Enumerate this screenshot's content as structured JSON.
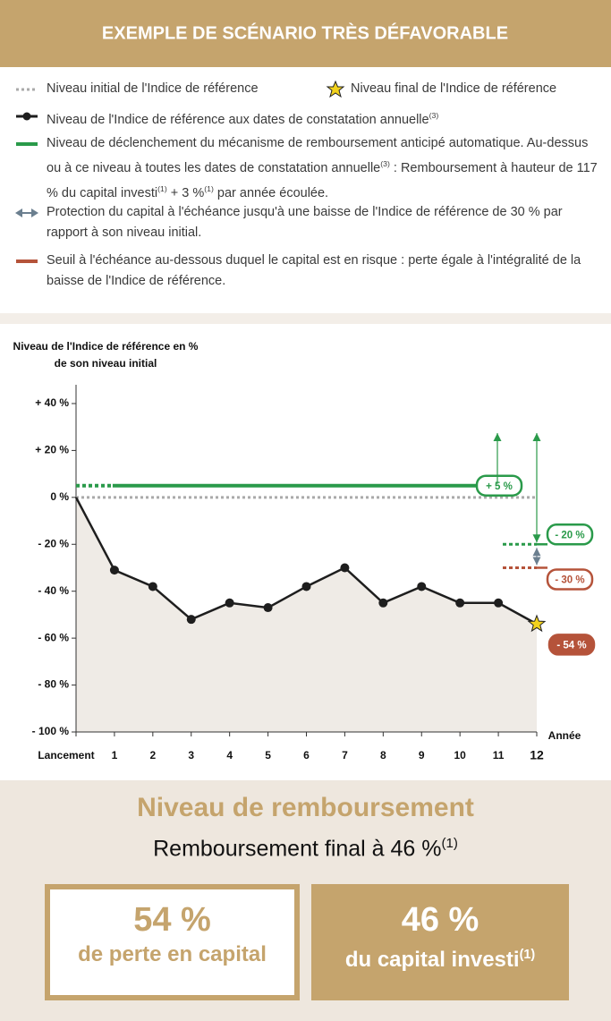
{
  "header": {
    "title": "EXEMPLE DE SCÉNARIO TRÈS DÉFAVORABLE"
  },
  "legend": {
    "items": [
      {
        "parts": [
          "Niveau initial de l'Indice de référence"
        ]
      },
      {
        "parts": [
          "Niveau final de l'Indice de référence"
        ]
      },
      {
        "parts": [
          "Niveau de l'Indice de référence aux dates de constatation annuelle",
          "(3)"
        ]
      },
      {
        "parts": [
          "Niveau de déclenchement du mécanisme de remboursement anticipé automatique. Au-dessus ou à ce niveau à toutes les dates de constatation annuelle",
          "(3)",
          " : Remboursement à hauteur de 117 % du capital investi",
          "(1)",
          " + 3 %",
          "(1)",
          " par année écoulée."
        ]
      },
      {
        "parts": [
          "Protection du capital à l'échéance jusqu'à une baisse de l'Indice de référence de 30 % par rapport à son niveau initial."
        ]
      },
      {
        "parts": [
          "Seuil à l'échéance au-dessous duquel le capital est en risque : perte égale à l'intégralité de la baisse de l'Indice de référence."
        ]
      }
    ]
  },
  "chart_data": {
    "type": "line",
    "y_label": [
      "Niveau de l'Indice de référence en %",
      "de son niveau initial"
    ],
    "x_label": "Année",
    "categories": [
      "Lancement",
      "1",
      "2",
      "3",
      "4",
      "5",
      "6",
      "7",
      "8",
      "9",
      "10",
      "11",
      "12"
    ],
    "series": [
      {
        "color": "#1e1e1e",
        "values": [
          0,
          -31,
          -38,
          -52,
          -45,
          -47,
          -38,
          -30,
          -45,
          -38,
          -45,
          -45,
          -54
        ]
      }
    ],
    "ylim": [
      -100,
      48
    ],
    "yticks": [
      {
        "value": 40,
        "label": "+ 40 %"
      },
      {
        "value": 20,
        "label": "+ 20 %"
      },
      {
        "value": 0,
        "label": "0 %"
      },
      {
        "value": -20,
        "label": "- 20 %"
      },
      {
        "value": -40,
        "label": "- 40 %"
      },
      {
        "value": -60,
        "label": "- 60 %"
      },
      {
        "value": -80,
        "label": "- 80 %"
      },
      {
        "value": -100,
        "label": "- 100 %"
      }
    ],
    "levels": [
      {
        "value": 5,
        "label": "+ 5 %",
        "color": "#2a9a4a"
      },
      {
        "value": -20,
        "label": "- 20 %",
        "color": "#2a9a4a"
      },
      {
        "value": -30,
        "label": "- 30 %",
        "color": "#b5533a"
      },
      {
        "value": -54,
        "label": "- 54 %",
        "color": "#b5533a"
      }
    ]
  },
  "summary": {
    "title": "Niveau de remboursement",
    "subtitle": [
      "Remboursement final à 46 %",
      "(1)"
    ],
    "boxes": [
      {
        "value_text": "54 %",
        "parts": [
          "de perte en capital"
        ]
      },
      {
        "value_text": "46 %",
        "parts": [
          "du capital investi",
          "(1)"
        ]
      }
    ]
  }
}
